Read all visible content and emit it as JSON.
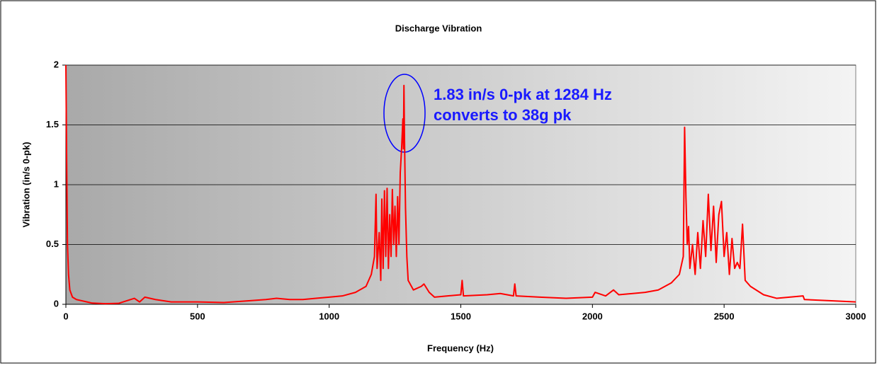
{
  "chart_data": {
    "type": "line",
    "title": "Discharge Vibration",
    "x_label": "Frequency (Hz)",
    "y_label": "Vibration (in/s 0-pk)",
    "annotations": [
      "1.83 in/s 0-pk at 1284 Hz",
      "converts to 38g pk"
    ],
    "xlim": [
      0,
      3000
    ],
    "xticks": [
      0,
      500,
      1000,
      1500,
      2000,
      2500,
      3000
    ],
    "ylim": [
      0,
      2
    ],
    "yticks": [
      0,
      0.5,
      1,
      1.5,
      2
    ],
    "grid": true,
    "x": [
      0,
      3,
      6,
      10,
      15,
      25,
      40,
      60,
      80,
      100,
      150,
      200,
      260,
      280,
      300,
      340,
      400,
      500,
      600,
      700,
      760,
      800,
      850,
      900,
      950,
      1000,
      1050,
      1100,
      1140,
      1160,
      1172,
      1178,
      1182,
      1190,
      1196,
      1200,
      1205,
      1210,
      1215,
      1220,
      1225,
      1230,
      1235,
      1240,
      1245,
      1250,
      1255,
      1260,
      1265,
      1270,
      1275,
      1278,
      1280,
      1282,
      1284,
      1286,
      1290,
      1295,
      1300,
      1320,
      1350,
      1360,
      1380,
      1400,
      1450,
      1500,
      1505,
      1510,
      1600,
      1650,
      1700,
      1705,
      1710,
      1800,
      1900,
      2000,
      2010,
      2050,
      2080,
      2100,
      2200,
      2250,
      2300,
      2330,
      2345,
      2350,
      2355,
      2360,
      2365,
      2370,
      2380,
      2390,
      2400,
      2410,
      2420,
      2430,
      2440,
      2450,
      2460,
      2470,
      2480,
      2490,
      2500,
      2510,
      2520,
      2530,
      2540,
      2550,
      2560,
      2570,
      2580,
      2600,
      2650,
      2700,
      2800,
      2805,
      2900,
      3000
    ],
    "series": [
      {
        "name": "Vibration",
        "color": "#ff0000",
        "values": [
          2.0,
          1.2,
          0.5,
          0.25,
          0.12,
          0.06,
          0.04,
          0.03,
          0.02,
          0.01,
          0.005,
          0.008,
          0.05,
          0.02,
          0.06,
          0.04,
          0.02,
          0.02,
          0.015,
          0.03,
          0.04,
          0.05,
          0.04,
          0.04,
          0.05,
          0.06,
          0.07,
          0.1,
          0.15,
          0.25,
          0.4,
          0.92,
          0.3,
          0.6,
          0.2,
          0.88,
          0.3,
          0.95,
          0.4,
          0.97,
          0.3,
          0.75,
          0.4,
          0.96,
          0.5,
          0.82,
          0.4,
          0.9,
          0.5,
          1.1,
          1.3,
          1.45,
          1.55,
          1.3,
          1.83,
          1.4,
          0.8,
          0.4,
          0.2,
          0.12,
          0.15,
          0.17,
          0.1,
          0.06,
          0.07,
          0.08,
          0.2,
          0.07,
          0.08,
          0.09,
          0.07,
          0.17,
          0.07,
          0.06,
          0.05,
          0.06,
          0.1,
          0.07,
          0.12,
          0.08,
          0.1,
          0.12,
          0.18,
          0.25,
          0.4,
          1.48,
          0.9,
          0.5,
          0.65,
          0.3,
          0.5,
          0.25,
          0.6,
          0.3,
          0.7,
          0.4,
          0.92,
          0.45,
          0.82,
          0.35,
          0.75,
          0.86,
          0.4,
          0.6,
          0.25,
          0.55,
          0.3,
          0.35,
          0.3,
          0.67,
          0.2,
          0.15,
          0.08,
          0.05,
          0.07,
          0.04,
          0.03,
          0.02
        ]
      }
    ]
  }
}
